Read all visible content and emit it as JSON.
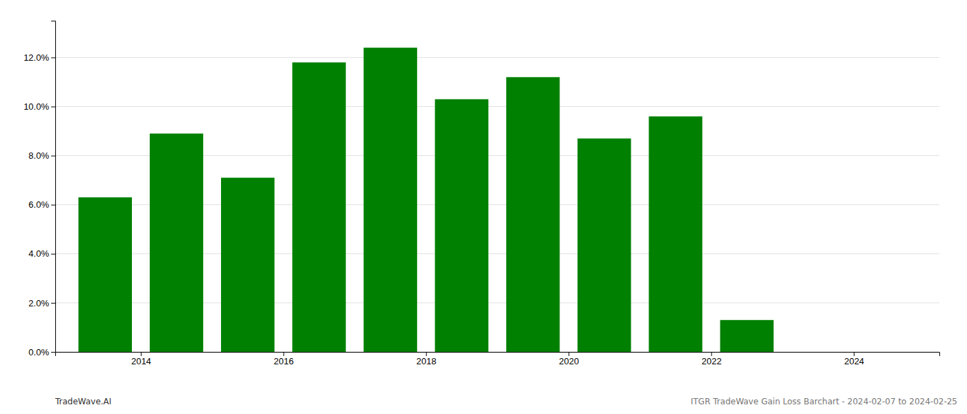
{
  "chart_data": {
    "type": "bar",
    "x": [
      2013.5,
      2014.5,
      2015.5,
      2016.5,
      2017.5,
      2018.5,
      2019.5,
      2020.5,
      2021.5,
      2022.5,
      2023.5
    ],
    "values": [
      0.063,
      0.089,
      0.071,
      0.118,
      0.124,
      0.103,
      0.112,
      0.087,
      0.096,
      0.013,
      0.0
    ],
    "color": "#008000",
    "xlim": [
      2012.8,
      2025.2
    ],
    "xticks": [
      2014,
      2016,
      2018,
      2020,
      2022,
      2024
    ],
    "ylim": [
      0,
      0.135
    ],
    "yticks": [
      {
        "value": 0.0,
        "label": "0.0%"
      },
      {
        "value": 0.02,
        "label": "2.0%"
      },
      {
        "value": 0.04,
        "label": "4.0%"
      },
      {
        "value": 0.06,
        "label": "6.0%"
      },
      {
        "value": 0.08,
        "label": "8.0%"
      },
      {
        "value": 0.1,
        "label": "10.0%"
      },
      {
        "value": 0.12,
        "label": "12.0%"
      }
    ],
    "grid": true,
    "annotations": [
      "TradeWave.AI",
      "ITGR TradeWave Gain Loss Barchart - 2024-02-07 to 2024-02-25"
    ]
  }
}
